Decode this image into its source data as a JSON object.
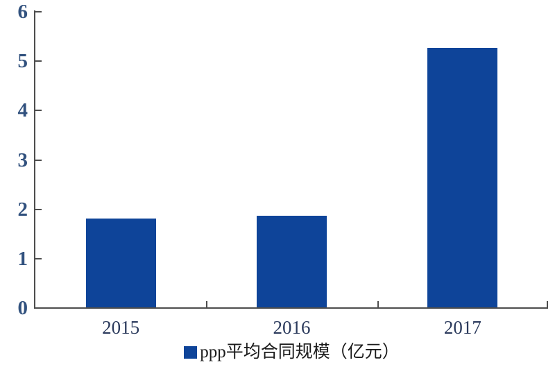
{
  "chart_data": {
    "type": "bar",
    "categories": [
      "2015",
      "2016",
      "2017"
    ],
    "values": [
      1.8,
      1.86,
      5.25
    ],
    "series_name": "ppp平均合同规模（亿元）",
    "legend": "ppp平均合同规模（亿元）",
    "legend_position": "bottom",
    "title": "",
    "xlabel": "",
    "ylabel": "",
    "ylim": [
      0,
      6
    ],
    "yticks": [
      0,
      1,
      2,
      3,
      4,
      5,
      6
    ],
    "grid": false
  },
  "colors": {
    "background": "#ffffff",
    "bar": "#0e4499",
    "axis": "#4d4d4d",
    "y_tick_label": "#31517e",
    "x_tick_label": "#2b3a5c",
    "legend_text": "#1b1b1b"
  }
}
